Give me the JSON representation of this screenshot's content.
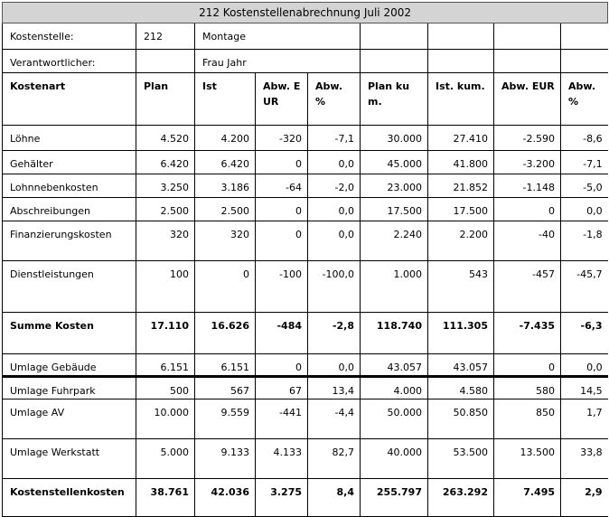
{
  "title": "212 Kostenstellenabrechnung Juli 2002",
  "info": [
    {
      "label": "Kostenstelle:",
      "code": "212",
      "value": "Montage"
    },
    {
      "label": "Verantwortlicher:",
      "code": "",
      "value": "Frau Jahr"
    }
  ],
  "headers": [
    "Kostenart",
    "Plan",
    "Ist",
    "Abw. EUR",
    "Abw. %",
    "Plan kum.",
    "Ist. kum.",
    "Abw. EUR",
    "Abw. %"
  ],
  "rows": [
    {
      "cells": [
        "Löhne",
        "4.520",
        "4.200",
        "-320",
        "-7,1",
        "30.000",
        "27.410",
        "-2.590",
        "-8,6"
      ]
    },
    {
      "cells": [
        "Gehälter",
        "6.420",
        "6.420",
        "0",
        "0,0",
        "45.000",
        "41.800",
        "-3.200",
        "-7,1"
      ]
    },
    {
      "cells": [
        "Lohnnebenkosten",
        "3.250",
        "3.186",
        "-64",
        "-2,0",
        "23.000",
        "21.852",
        "-1.148",
        "-5,0"
      ]
    },
    {
      "cells": [
        "Abschreibungen",
        "2.500",
        "2.500",
        "0",
        "0,0",
        "17.500",
        "17.500",
        "0",
        "0,0"
      ]
    },
    {
      "cells": [
        "Finanzierungskosten",
        "320",
        "320",
        "0",
        "0,0",
        "2.240",
        "2.200",
        "-40",
        "-1,8"
      ]
    },
    {
      "cells": [
        "Dienstleistungen",
        "100",
        "0",
        "-100",
        "-100,0",
        "1.000",
        "543",
        "-457",
        "-45,7"
      ]
    },
    {
      "cells": [
        "Summe Kosten",
        "17.110",
        "16.626",
        "-484",
        "-2,8",
        "118.740",
        "111.305",
        "-7.435",
        "-6,3"
      ],
      "bold": true
    },
    {
      "cells": [
        "Umlage Gebäude",
        "6.151",
        "6.151",
        "0",
        "0,0",
        "43.057",
        "43.057",
        "0",
        "0,0"
      ]
    },
    {
      "cells": [
        "Umlage Fuhrpark",
        "500",
        "567",
        "67",
        "13,4",
        "4.000",
        "4.580",
        "580",
        "14,5"
      ]
    },
    {
      "cells": [
        "Umlage AV",
        "10.000",
        "9.559",
        "-441",
        "-4,4",
        "50.000",
        "50.850",
        "850",
        "1,7"
      ]
    },
    {
      "cells": [
        "Umlage Werkstatt",
        "5.000",
        "9.133",
        "4.133",
        "82,7",
        "40.000",
        "53.500",
        "13.500",
        "33,8"
      ]
    },
    {
      "cells": [
        "Kostenstellenkosten",
        "38.761",
        "42.036",
        "3.275",
        "8,4",
        "255.797",
        "263.292",
        "7.495",
        "2,9"
      ],
      "bold": true
    }
  ]
}
